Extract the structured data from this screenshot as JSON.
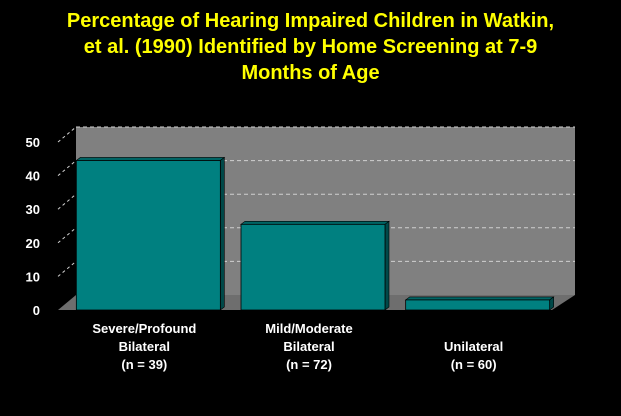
{
  "title_lines": [
    "Percentage of Hearing Impaired Children in Watkin,",
    "et al. (1990) Identified by Home Screening at 7-9",
    "Months of Age"
  ],
  "colors": {
    "background": "#000000",
    "title": "#ffff00",
    "bar_front": "#008080",
    "bar_top": "#006464",
    "bar_side": "#004848",
    "wall": "#808080",
    "floor": "#6e6e6e",
    "gridline": "#d0d0d0",
    "text": "#ffffff"
  },
  "chart_data": {
    "type": "bar",
    "title": "Percentage of Hearing Impaired Children in Watkin, et al. (1990) Identified by Home Screening at 7-9 Months of Age",
    "categories": [
      [
        "Severe/Profound",
        "Bilateral",
        "(n = 39)"
      ],
      [
        "Mild/Moderate",
        "Bilateral",
        "(n = 72)"
      ],
      [
        "Unilateral",
        "(n = 60)"
      ]
    ],
    "values": [
      44.5,
      25.5,
      3
    ],
    "yticks": [
      "0",
      "10",
      "20",
      "30",
      "40",
      "50"
    ],
    "ylim": [
      0,
      50
    ],
    "xlabel": "",
    "ylabel": "",
    "grid": true,
    "style": "3d"
  }
}
